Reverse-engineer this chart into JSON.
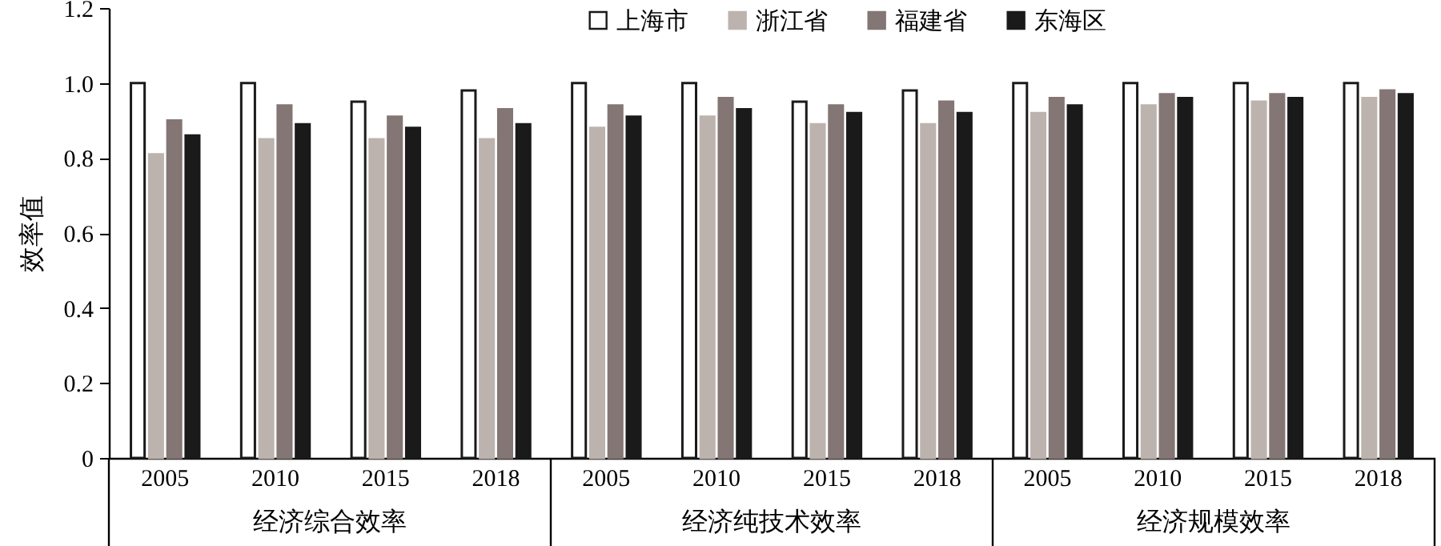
{
  "chart_data": {
    "type": "bar",
    "ylabel": "效率值",
    "categories": [
      "2005",
      "2010",
      "2015",
      "2018",
      "2005",
      "2010",
      "2015",
      "2018",
      "2005",
      "2010",
      "2015",
      "2018"
    ],
    "series": [
      {
        "name": "上海市",
        "color": "#ffffff",
        "values": [
          1.0,
          1.0,
          0.95,
          0.98,
          1.0,
          1.0,
          0.95,
          0.98,
          1.0,
          1.0,
          1.0,
          1.0
        ]
      },
      {
        "name": "浙江省",
        "color": "#bdb3ae",
        "values": [
          0.81,
          0.85,
          0.85,
          0.85,
          0.88,
          0.91,
          0.89,
          0.89,
          0.92,
          0.94,
          0.95,
          0.96
        ]
      },
      {
        "name": "福建省",
        "color": "#837674",
        "values": [
          0.9,
          0.94,
          0.91,
          0.93,
          0.94,
          0.96,
          0.94,
          0.95,
          0.96,
          0.97,
          0.97,
          0.98
        ]
      },
      {
        "name": "东海区",
        "color": "#1a1a1a",
        "values": [
          0.86,
          0.89,
          0.88,
          0.89,
          0.91,
          0.93,
          0.92,
          0.92,
          0.94,
          0.96,
          0.96,
          0.97
        ]
      }
    ],
    "annotations": [
      "经济综合效率",
      "经济纯技术效率",
      "经济规模效率"
    ],
    "ylim": [
      0,
      1.2
    ],
    "yticks": [
      0,
      0.2,
      0.4,
      0.6,
      0.8,
      {
        "value": 1,
        "label": "1.0"
      },
      1.2
    ],
    "legend": "top",
    "grid": false
  }
}
